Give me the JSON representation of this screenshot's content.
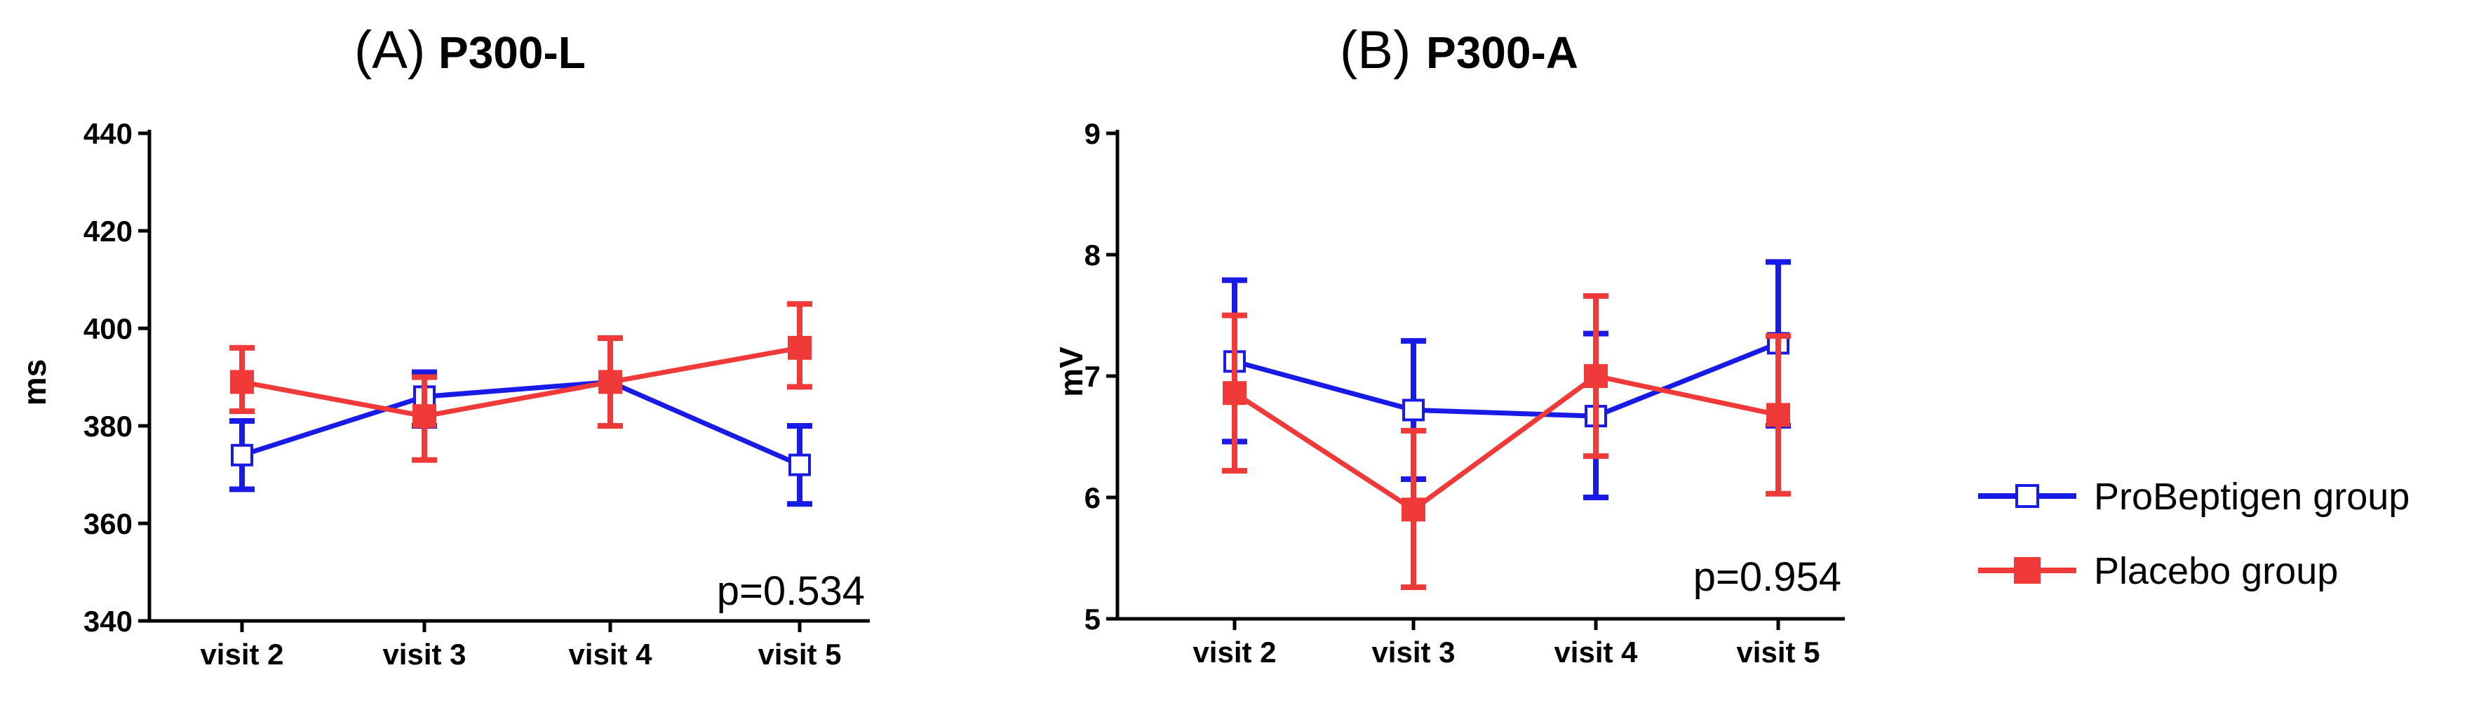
{
  "chart_data": [
    {
      "type": "line",
      "panel_label": "(A)",
      "title": "P300-L",
      "xlabel": "",
      "ylabel": "ms",
      "categories": [
        "visit 2",
        "visit 3",
        "visit 4",
        "visit 5"
      ],
      "ylim": [
        340,
        440
      ],
      "yticks": [
        340,
        360,
        380,
        400,
        420,
        440
      ],
      "ytick_labels": [
        "340",
        "360",
        "380",
        "400",
        "420",
        "440"
      ],
      "annotation": "p=0.534",
      "series": [
        {
          "name": "ProBeptigen group",
          "color": "#1a1ae6",
          "marker": "open-square",
          "values": [
            374,
            386,
            389,
            372
          ],
          "err_low": [
            367,
            380,
            380,
            364
          ],
          "err_high": [
            381,
            391,
            398,
            380
          ]
        },
        {
          "name": "Placebo group",
          "color": "#f03a3a",
          "marker": "filled-square",
          "values": [
            389,
            382,
            389,
            396
          ],
          "err_low": [
            383,
            373,
            380,
            388
          ],
          "err_high": [
            396,
            390,
            398,
            405
          ]
        }
      ]
    },
    {
      "type": "line",
      "panel_label": "(B)",
      "title": "P300-A",
      "xlabel": "",
      "ylabel": "mV",
      "categories": [
        "visit 2",
        "visit 3",
        "visit 4",
        "visit 5"
      ],
      "ylim": [
        5,
        9
      ],
      "yticks": [
        5,
        6,
        7,
        8,
        9
      ],
      "ytick_labels": [
        "5",
        "6",
        "7",
        "8",
        "9"
      ],
      "annotation": "p=0.954",
      "series": [
        {
          "name": "ProBeptigen group",
          "color": "#1a1ae6",
          "marker": "open-square",
          "values": [
            7.12,
            6.72,
            6.67,
            7.27
          ],
          "err_low": [
            6.46,
            6.15,
            6.0,
            6.59
          ],
          "err_high": [
            7.79,
            7.29,
            7.35,
            7.94
          ]
        },
        {
          "name": "Placebo group",
          "color": "#f03a3a",
          "marker": "filled-square",
          "values": [
            6.86,
            5.9,
            7.0,
            6.68
          ],
          "err_low": [
            6.22,
            5.26,
            6.34,
            6.03
          ],
          "err_high": [
            7.5,
            6.55,
            7.66,
            7.33
          ]
        }
      ]
    }
  ],
  "legend": {
    "position": "right",
    "items": [
      {
        "label": "ProBeptigen group",
        "color": "#1a1ae6",
        "marker": "open-square"
      },
      {
        "label": "Placebo group",
        "color": "#f03a3a",
        "marker": "filled-square"
      }
    ]
  }
}
